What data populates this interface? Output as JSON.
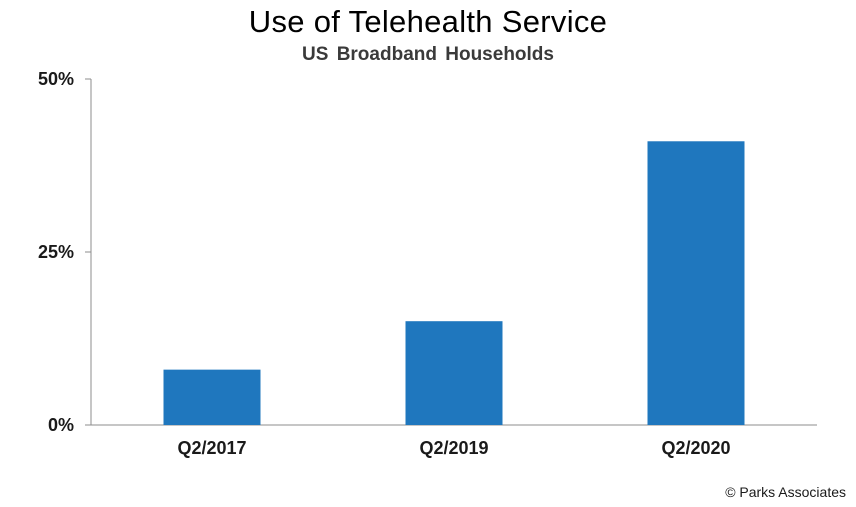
{
  "chart_data": {
    "type": "bar",
    "title": "Use of Telehealth Service",
    "subtitle": "US Broadband Households",
    "categories": [
      "Q2/2017",
      "Q2/2019",
      "Q2/2020"
    ],
    "values": [
      8,
      15,
      41
    ],
    "ylim": [
      0,
      50
    ],
    "yticks": [
      0,
      25,
      50
    ],
    "ytick_labels": [
      "0%",
      "25%",
      "50%"
    ],
    "xlabel": "",
    "ylabel": "",
    "bar_color": "#1f77be",
    "grid": false,
    "legend": "none"
  },
  "footer": {
    "credit": "© Parks Associates"
  }
}
